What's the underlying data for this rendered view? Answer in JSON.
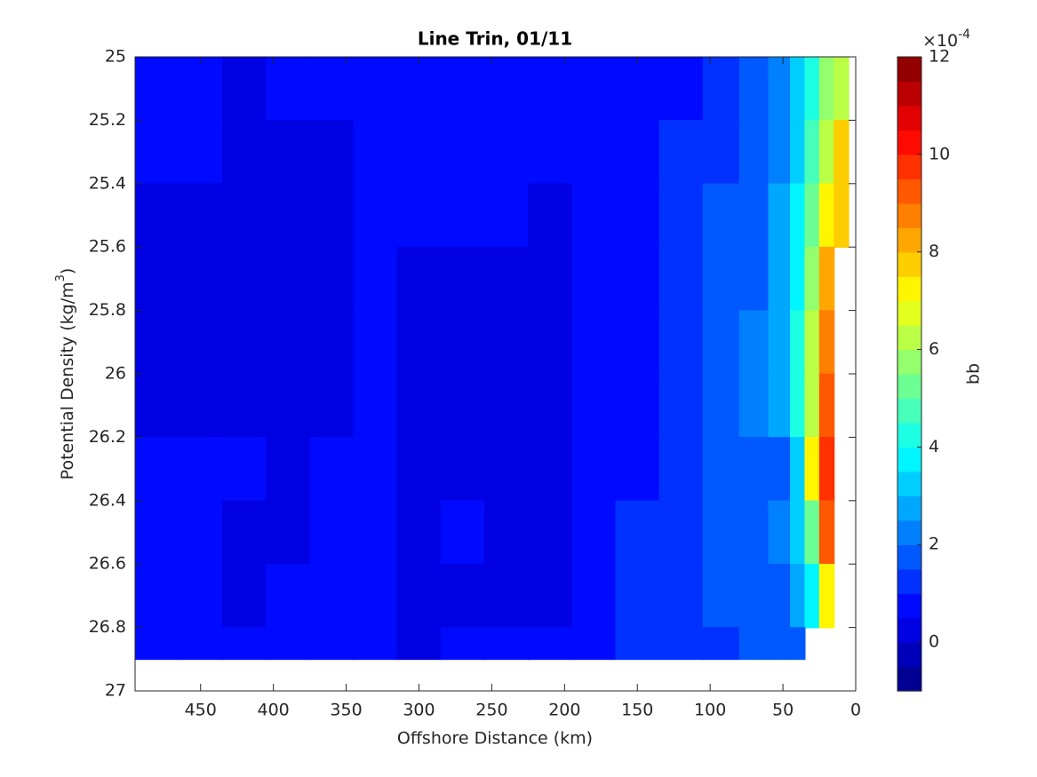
{
  "chart_data": {
    "type": "contourf",
    "title": "Line Trin, 01/11",
    "xlabel": "Offshore Distance (km)",
    "ylabel": [
      "Potential Density (kg/m",
      "3",
      ")"
    ],
    "colorbar_label": "bb",
    "colorbar_multiplier": "×10",
    "colorbar_exponent": "-4",
    "colormap": "jet",
    "levels": 26,
    "clim": [
      -1,
      12
    ],
    "cticks": [
      0,
      2,
      4,
      6,
      8,
      10,
      12
    ],
    "xlim": [
      495,
      0
    ],
    "xticks": [
      450,
      400,
      350,
      300,
      250,
      200,
      150,
      100,
      50,
      0
    ],
    "ylim": [
      25,
      27
    ],
    "yticks": [
      25,
      25.2,
      25.4,
      25.6,
      25.8,
      26,
      26.2,
      26.4,
      26.6,
      26.8,
      27
    ],
    "y_bottom": 26.9,
    "x": [
      480,
      450,
      420,
      390,
      360,
      330,
      300,
      270,
      240,
      210,
      180,
      150,
      120,
      90,
      70,
      50,
      40,
      30,
      20,
      10
    ],
    "y": [
      25.0,
      25.2,
      25.4,
      25.6,
      25.8,
      26.0,
      26.2,
      26.4,
      26.6,
      26.8
    ],
    "z": [
      [
        0.8,
        0.8,
        0,
        0.8,
        0.8,
        0.8,
        0.8,
        0.8,
        0.8,
        0.8,
        0.8,
        0.8,
        0.9,
        1.3,
        1.7,
        2.2,
        3,
        4,
        5.5,
        6.5
      ],
      [
        0.8,
        0.8,
        0,
        0.3,
        0.3,
        0.8,
        0.8,
        0.8,
        0.8,
        0.8,
        0.8,
        0.8,
        1.0,
        1.4,
        1.8,
        2.3,
        3,
        4.5,
        6.5,
        7.5
      ],
      [
        0.3,
        0.3,
        0,
        0.3,
        0.3,
        0.8,
        0.8,
        0.8,
        0.5,
        0.3,
        0.8,
        0.8,
        1.0,
        1.5,
        1.8,
        2.5,
        3.5,
        5,
        7,
        7.5
      ],
      [
        0.3,
        0.3,
        0.3,
        0.3,
        0.3,
        0.8,
        0.3,
        0.3,
        0.3,
        0.3,
        0.8,
        0.8,
        1.1,
        1.5,
        1.9,
        2.5,
        3.5,
        5.5,
        8,
        null
      ],
      [
        0.3,
        0.3,
        0.3,
        0.3,
        0.3,
        0.8,
        0.3,
        0.3,
        0.3,
        0.3,
        0.8,
        0.9,
        1.2,
        1.6,
        2,
        2.5,
        4,
        6,
        8.5,
        null
      ],
      [
        0.3,
        0.3,
        0.3,
        0.3,
        0.3,
        0.8,
        0.3,
        0.3,
        0.3,
        0.3,
        0.8,
        0.9,
        1.2,
        1.6,
        2,
        2.5,
        4,
        6.5,
        9,
        null
      ],
      [
        0.8,
        0.8,
        0.8,
        0.3,
        0.8,
        0.8,
        0.3,
        0.3,
        0.3,
        0.3,
        0.8,
        0.9,
        1.2,
        1.6,
        1.6,
        1.5,
        3,
        7,
        9.5,
        null
      ],
      [
        0.8,
        0.8,
        0.3,
        0.3,
        0.8,
        0.8,
        0.3,
        0.8,
        0.3,
        0.3,
        0.8,
        1.0,
        1.3,
        1.6,
        1.8,
        2,
        3,
        5,
        9,
        null
      ],
      [
        0.8,
        0.8,
        0.3,
        0.8,
        0.8,
        0.8,
        0.3,
        0.3,
        0.3,
        0.3,
        0.8,
        1.2,
        1.3,
        1.7,
        1.7,
        1.8,
        2.5,
        3.5,
        7,
        null
      ],
      [
        0.8,
        0.8,
        0.8,
        0.8,
        0.8,
        0.8,
        0.3,
        0.8,
        0.8,
        0.8,
        0.8,
        1.3,
        1.3,
        1.3,
        1.6,
        1.8,
        1.5,
        null,
        null,
        null
      ]
    ]
  }
}
